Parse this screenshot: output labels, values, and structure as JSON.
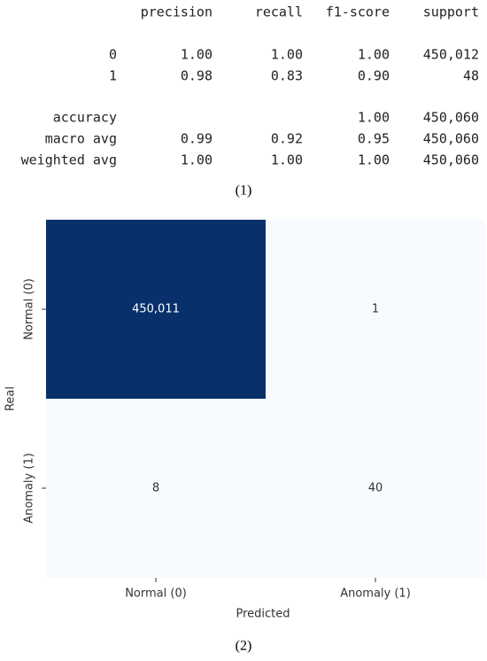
{
  "report": {
    "header": [
      "precision",
      "recall",
      "f1-score",
      "support"
    ],
    "rows": [
      {
        "label": "0",
        "cells": [
          "1.00",
          "1.00",
          "1.00",
          "450,012"
        ]
      },
      {
        "label": "1",
        "cells": [
          "0.98",
          "0.83",
          "0.90",
          "48"
        ]
      },
      {
        "label": "accuracy",
        "cells": [
          null,
          null,
          "1.00",
          "450,060"
        ]
      },
      {
        "label": "macro avg",
        "cells": [
          "0.99",
          "0.92",
          "0.95",
          "450,060"
        ]
      },
      {
        "label": "weighted avg",
        "cells": [
          "1.00",
          "1.00",
          "1.00",
          "450,060"
        ]
      }
    ],
    "caption": "(1)"
  },
  "chart_data": {
    "type": "heatmap",
    "x_categories": [
      "Normal (0)",
      "Anomaly (1)"
    ],
    "y_categories": [
      "Normal (0)",
      "Anomaly (1)"
    ],
    "values": [
      [
        450011,
        1
      ],
      [
        8,
        40
      ]
    ],
    "value_labels": [
      [
        "450,011",
        "1"
      ],
      [
        "8",
        "40"
      ]
    ],
    "xlabel": "Predicted",
    "ylabel": "Real",
    "colormap": [
      "#f7fbff",
      "#08306b"
    ],
    "caption": "(2)"
  }
}
